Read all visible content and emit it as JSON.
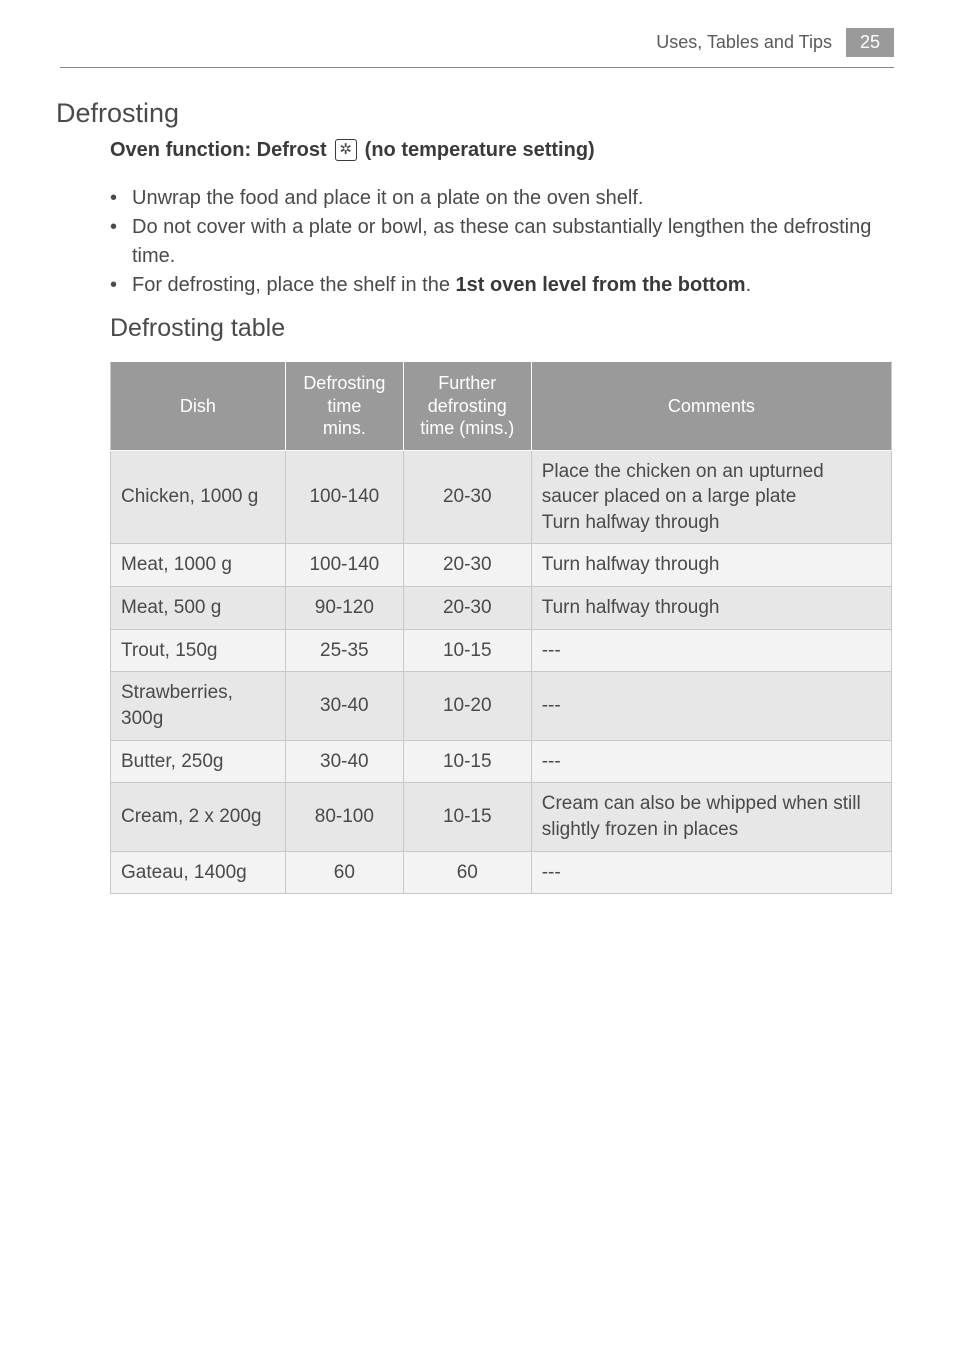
{
  "header": {
    "section_title": "Uses, Tables and Tips",
    "page_number": "25"
  },
  "h1": "Defrosting",
  "h2_parts": {
    "before": "Oven function: Defrost",
    "icon_glyph": "✲",
    "after": "(no temperature setting)"
  },
  "bullets": [
    "Unwrap the food and place it on a plate on the oven shelf.",
    "Do not cover with a plate or bowl, as these can substantially lengthen the defrosting time."
  ],
  "bullet3": {
    "prefix": "For defrosting, place the shelf in the ",
    "bold": "1st oven level from the bottom",
    "suffix": "."
  },
  "h3": "Defrosting table",
  "table": {
    "headers": {
      "dish": "Dish",
      "t1_a": "Defrosting",
      "t1_b": "time",
      "t1_c": "mins.",
      "t2_a": "Further",
      "t2_b": "defrosting",
      "t2_c": "time (mins.)",
      "comments": "Comments"
    },
    "rows": [
      {
        "dish": "Chicken, 1000 g",
        "t1": "100-140",
        "t2": "20-30",
        "comment": "Place the chicken on an upturned saucer placed on a large plate\nTurn halfway through",
        "zebra": "odd"
      },
      {
        "dish": "Meat, 1000 g",
        "t1": "100-140",
        "t2": "20-30",
        "comment": "Turn halfway through",
        "zebra": "even"
      },
      {
        "dish": "Meat, 500 g",
        "t1": "90-120",
        "t2": "20-30",
        "comment": "Turn halfway through",
        "zebra": "odd"
      },
      {
        "dish": "Trout, 150g",
        "t1": "25-35",
        "t2": "10-15",
        "comment": "---",
        "zebra": "even"
      },
      {
        "dish": "Strawberries, 300g",
        "t1": "30-40",
        "t2": "10-20",
        "comment": "---",
        "zebra": "odd"
      },
      {
        "dish": "Butter, 250g",
        "t1": "30-40",
        "t2": "10-15",
        "comment": "---",
        "zebra": "even"
      },
      {
        "dish": "Cream, 2 x 200g",
        "t1": "80-100",
        "t2": "10-15",
        "comment": "Cream can also be whipped when still slightly frozen in places",
        "zebra": "odd"
      },
      {
        "dish": "Gateau, 1400g",
        "t1": "60",
        "t2": "60",
        "comment": "---",
        "zebra": "even"
      }
    ]
  },
  "colors": {
    "header_bg": "#9a9a9a",
    "row_odd": "#e7e7e7",
    "row_even": "#f3f3f3",
    "border": "#c8c8c8",
    "text": "#4a4a4a"
  }
}
